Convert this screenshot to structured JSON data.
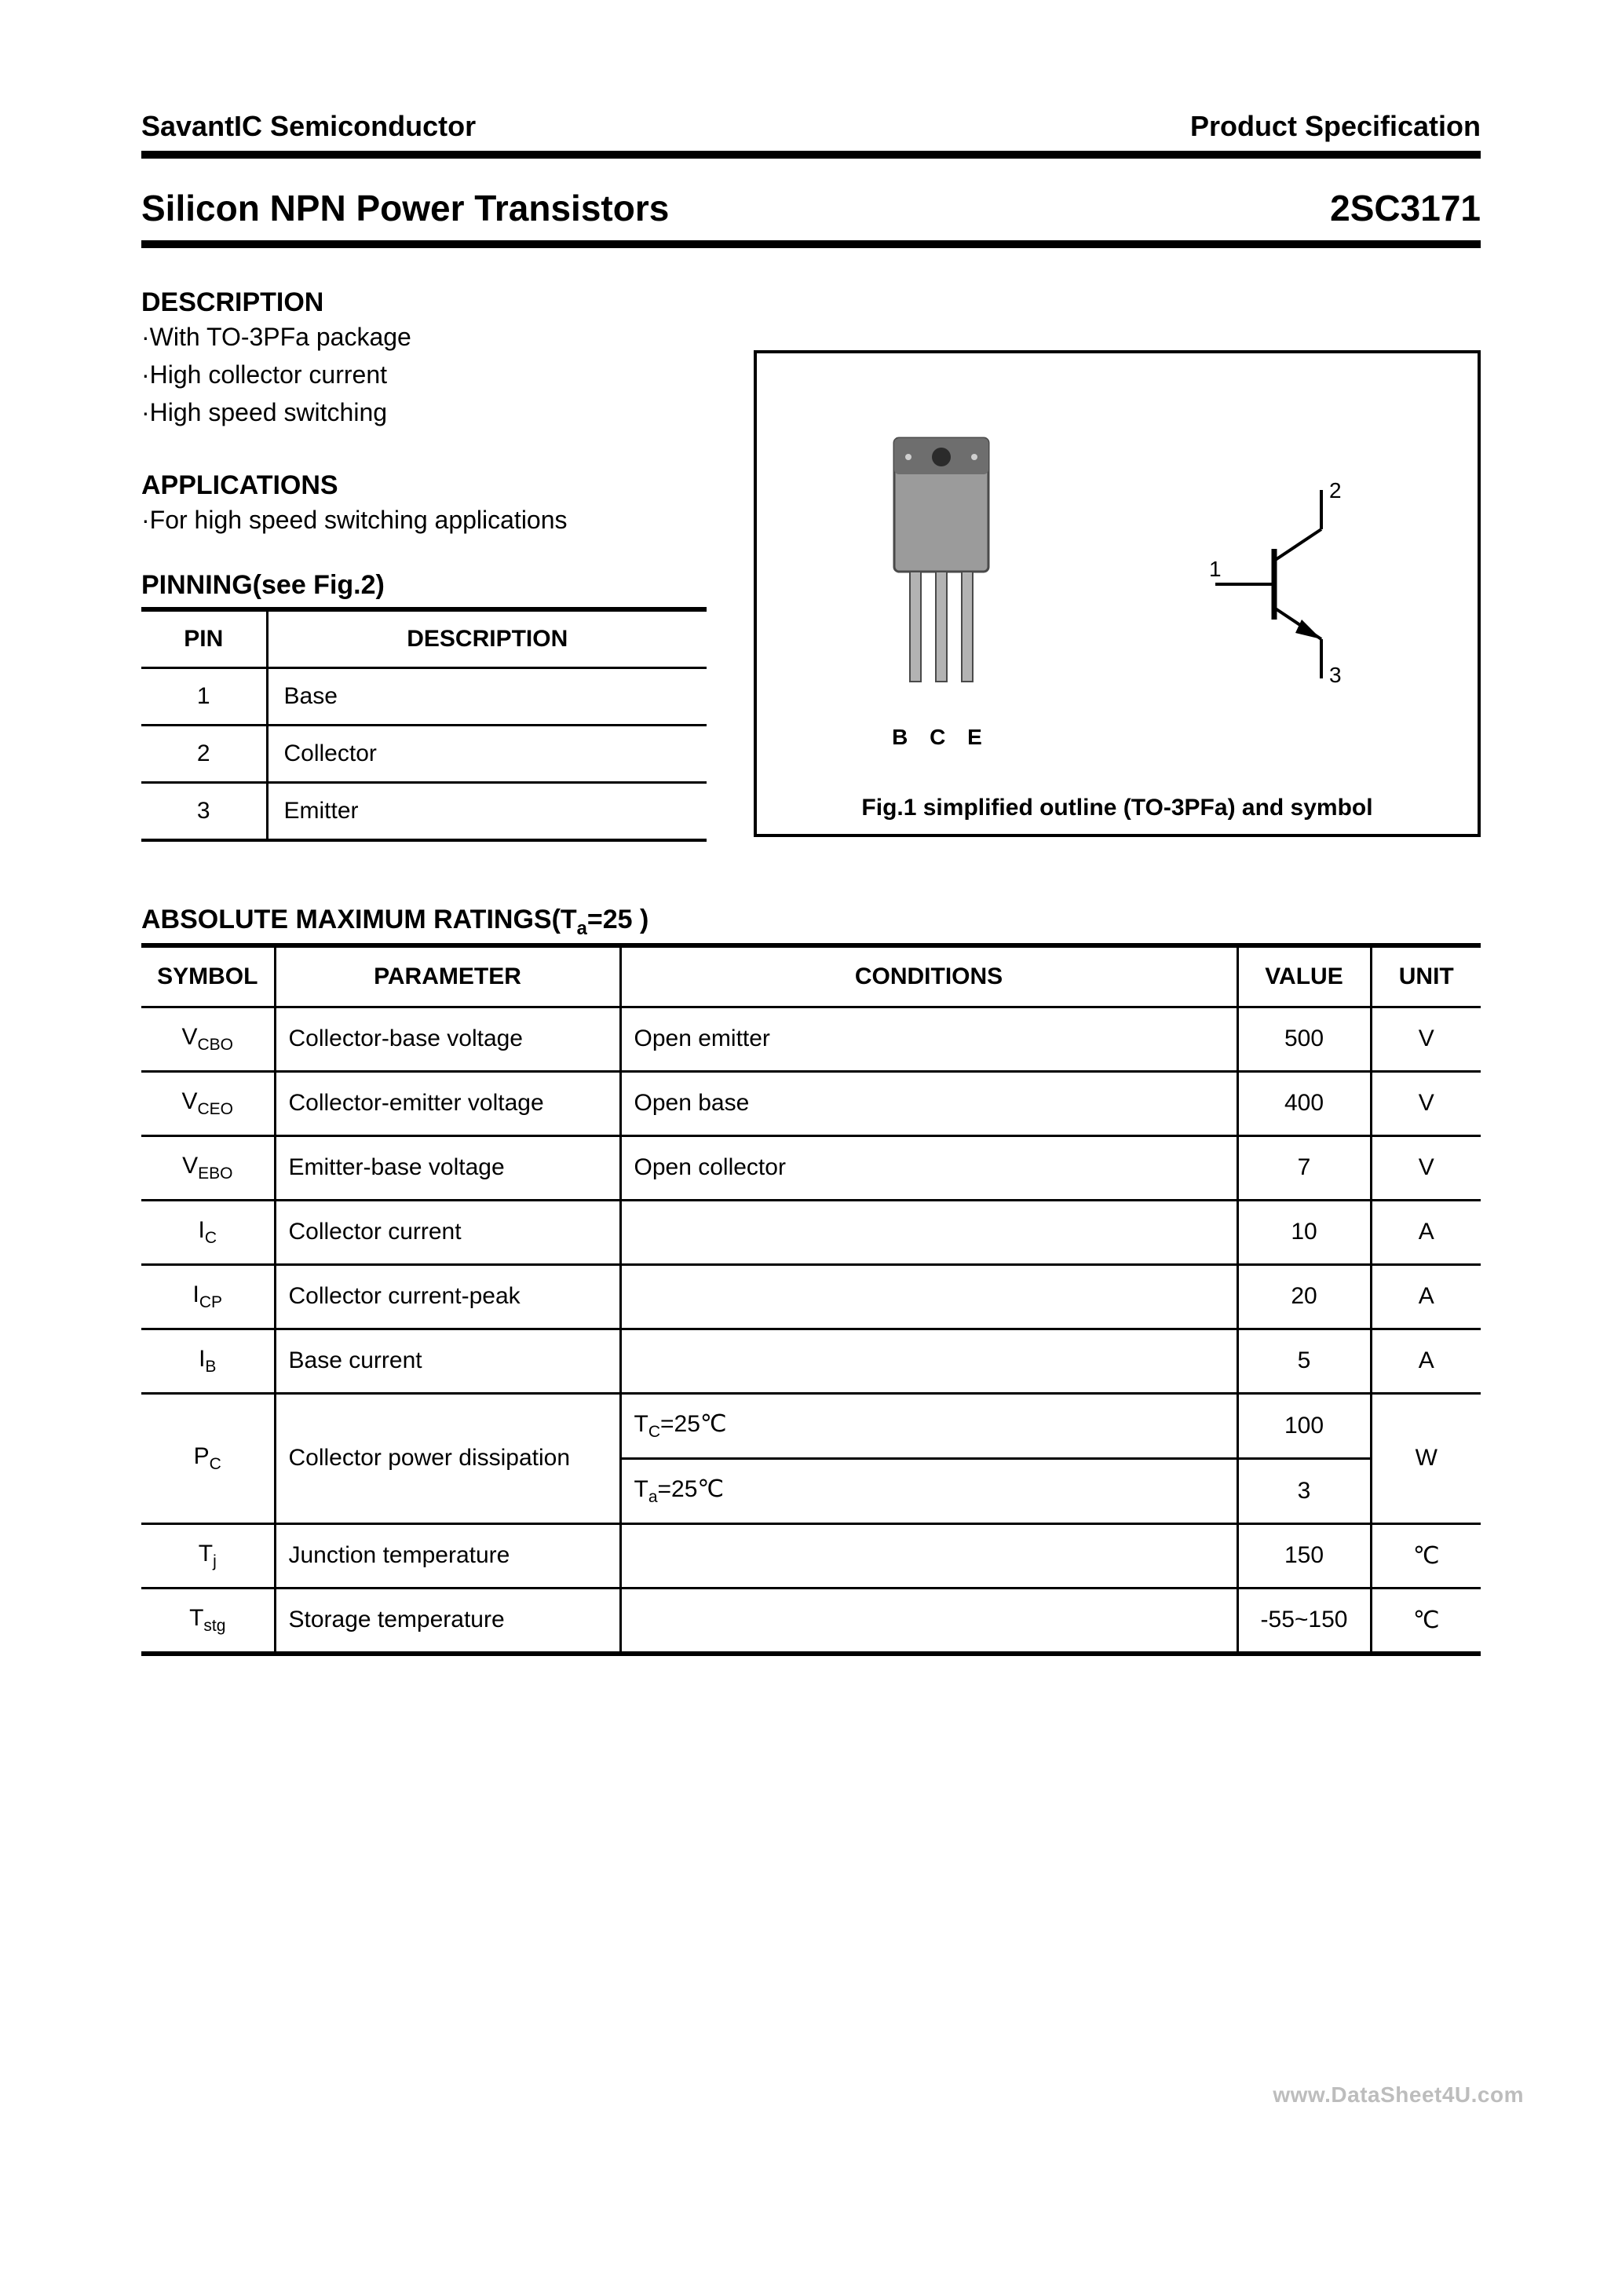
{
  "header": {
    "company": "SavantIC Semiconductor",
    "doc_type": "Product Specification"
  },
  "title": {
    "left": "Silicon NPN Power Transistors",
    "right": "2SC3171"
  },
  "description": {
    "heading": "DESCRIPTION",
    "items": [
      "·With TO-3PFa package",
      "·High collector current",
      "·High speed switching"
    ]
  },
  "applications": {
    "heading": "APPLICATIONS",
    "items": [
      "·For high speed switching applications"
    ]
  },
  "pinning": {
    "heading": "PINNING(see Fig.2)",
    "columns": [
      "PIN",
      "DESCRIPTION"
    ],
    "rows": [
      {
        "pin": "1",
        "desc": "Base"
      },
      {
        "pin": "2",
        "desc": "Collector"
      },
      {
        "pin": "3",
        "desc": "Emitter"
      }
    ]
  },
  "figure": {
    "pin_letters": "B   C   E",
    "symbol_pins": {
      "base": "1",
      "collector": "2",
      "emitter": "3"
    },
    "caption": "Fig.1 simplified outline (TO-3PFa) and symbol"
  },
  "ratings": {
    "heading_prefix": "ABSOLUTE MAXIMUM RATINGS(T",
    "heading_sub": "a",
    "heading_suffix": "=25   )",
    "columns": [
      "SYMBOL",
      "PARAMETER",
      "CONDITIONS",
      "VALUE",
      "UNIT"
    ],
    "rows": [
      {
        "sym": "V",
        "sub": "CBO",
        "param": "Collector-base voltage",
        "cond": "Open emitter",
        "val": "500",
        "unit": "V",
        "rowspan_param": 1,
        "rowspan_unit": 1
      },
      {
        "sym": "V",
        "sub": "CEO",
        "param": "Collector-emitter voltage",
        "cond": "Open base",
        "val": "400",
        "unit": "V",
        "rowspan_param": 1,
        "rowspan_unit": 1
      },
      {
        "sym": "V",
        "sub": "EBO",
        "param": "Emitter-base voltage",
        "cond": "Open collector",
        "val": "7",
        "unit": "V",
        "rowspan_param": 1,
        "rowspan_unit": 1
      },
      {
        "sym": "I",
        "sub": "C",
        "param": "Collector current",
        "cond": "",
        "val": "10",
        "unit": "A",
        "rowspan_param": 1,
        "rowspan_unit": 1
      },
      {
        "sym": "I",
        "sub": "CP",
        "param": "Collector current-peak",
        "cond": "",
        "val": "20",
        "unit": "A",
        "rowspan_param": 1,
        "rowspan_unit": 1
      },
      {
        "sym": "I",
        "sub": "B",
        "param": "Base current",
        "cond": "",
        "val": "5",
        "unit": "A",
        "rowspan_param": 1,
        "rowspan_unit": 1
      },
      {
        "sym": "P",
        "sub": "C",
        "param": "Collector power dissipation",
        "cond": "T<sub>C</sub>=25℃",
        "val": "100",
        "unit": "W",
        "rowspan_param": 2,
        "rowspan_unit": 2
      },
      {
        "sym": "",
        "sub": "",
        "param": "",
        "cond": "T<sub>a</sub>=25℃",
        "val": "3",
        "unit": "",
        "rowspan_param": 0,
        "rowspan_unit": 0
      },
      {
        "sym": "T",
        "sub": "j",
        "param": "Junction temperature",
        "cond": "",
        "val": "150",
        "unit": "℃",
        "rowspan_param": 1,
        "rowspan_unit": 1
      },
      {
        "sym": "T",
        "sub": "stg",
        "param": "Storage temperature",
        "cond": "",
        "val": "-55~150",
        "unit": "℃",
        "rowspan_param": 1,
        "rowspan_unit": 1
      }
    ]
  },
  "watermark": "www.DataSheet4U.com",
  "colors": {
    "text": "#000000",
    "background": "#ffffff",
    "watermark": "#bdbdbd",
    "pkg_body": "#9b9b9b",
    "pkg_dark": "#6e6e6e",
    "pkg_lead": "#b3b3b3"
  }
}
